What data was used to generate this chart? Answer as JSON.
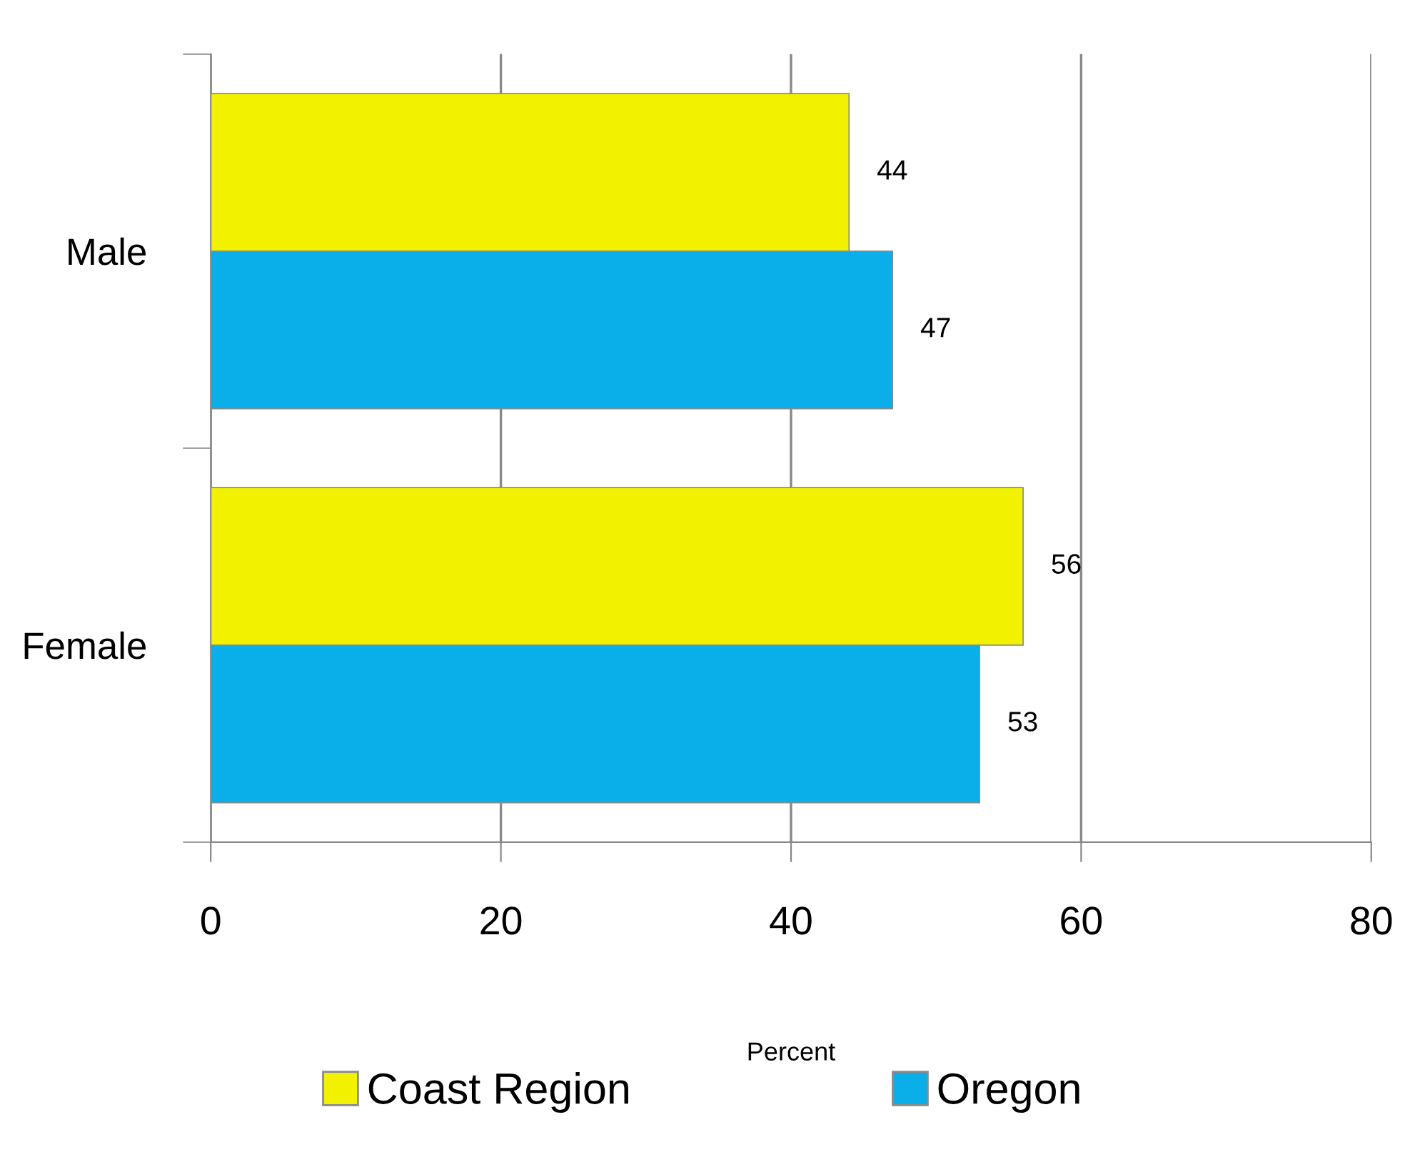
{
  "chart_data": {
    "type": "bar",
    "orientation": "horizontal",
    "categories": [
      "Male",
      "Female"
    ],
    "series": [
      {
        "name": "Coast Region",
        "color": "#f2f200",
        "values": [
          44,
          56
        ]
      },
      {
        "name": "Oregon",
        "color": "#0aaee8",
        "values": [
          47,
          53
        ]
      }
    ],
    "xlabel": "Percent",
    "xlim": [
      0,
      80
    ],
    "xticks": [
      0,
      20,
      40,
      60,
      80
    ],
    "grid": "x",
    "legend": "bottom",
    "data_labels": true
  }
}
